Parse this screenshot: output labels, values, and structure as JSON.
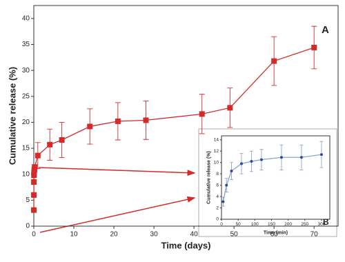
{
  "chart_data": [
    {
      "type": "line",
      "annotation": "A",
      "xlabel": "Time (days)",
      "ylabel": "Cumulative release (%)",
      "color": "#d42a2a",
      "x": [
        0.0035,
        0.0104,
        0.0208,
        0.0417,
        0.0625,
        0.0833,
        0.125,
        0.1667,
        0.2083,
        1,
        4,
        7,
        14,
        21,
        28,
        42,
        49,
        60,
        70
      ],
      "values": [
        3.1,
        6,
        8.5,
        9.8,
        10.2,
        10.5,
        10.9,
        10.9,
        11.4,
        13.6,
        15.7,
        16.6,
        19.2,
        20.2,
        20.4,
        21.6,
        22.8,
        31.8,
        34.4
      ],
      "errors": [
        null,
        null,
        null,
        null,
        null,
        null,
        null,
        null,
        null,
        2.5,
        3,
        3.4,
        3.4,
        3.6,
        3.7,
        3.8,
        3.8,
        4.7,
        4.1
      ],
      "xlim": [
        0,
        76
      ],
      "xticks": [
        0,
        10,
        20,
        30,
        40,
        50,
        60,
        70
      ],
      "ylim": [
        0,
        42.5
      ],
      "yticks": [
        0,
        5,
        10,
        15,
        20,
        25,
        30,
        35,
        40
      ]
    },
    {
      "type": "line",
      "annotation": "B",
      "xlabel": "Time (min)",
      "ylabel": "Cumulative release (%)",
      "color": "#2b4b9b",
      "line_color": "#8ea4cc",
      "x": [
        5,
        15,
        30,
        60,
        90,
        120,
        180,
        240,
        300
      ],
      "values": [
        3.1,
        6,
        8.5,
        9.8,
        10.2,
        10.5,
        10.9,
        10.9,
        11.4
      ],
      "errors": [
        0.8,
        1.2,
        1.5,
        1.8,
        1.8,
        1.8,
        2.2,
        2.2,
        2.3
      ],
      "xlim": [
        0,
        325
      ],
      "xticks": [
        0,
        50,
        100,
        150,
        200,
        250,
        300
      ],
      "ylim": [
        0,
        14.7
      ],
      "yticks": [
        0,
        2,
        4,
        6,
        8,
        10,
        12,
        14
      ]
    }
  ]
}
